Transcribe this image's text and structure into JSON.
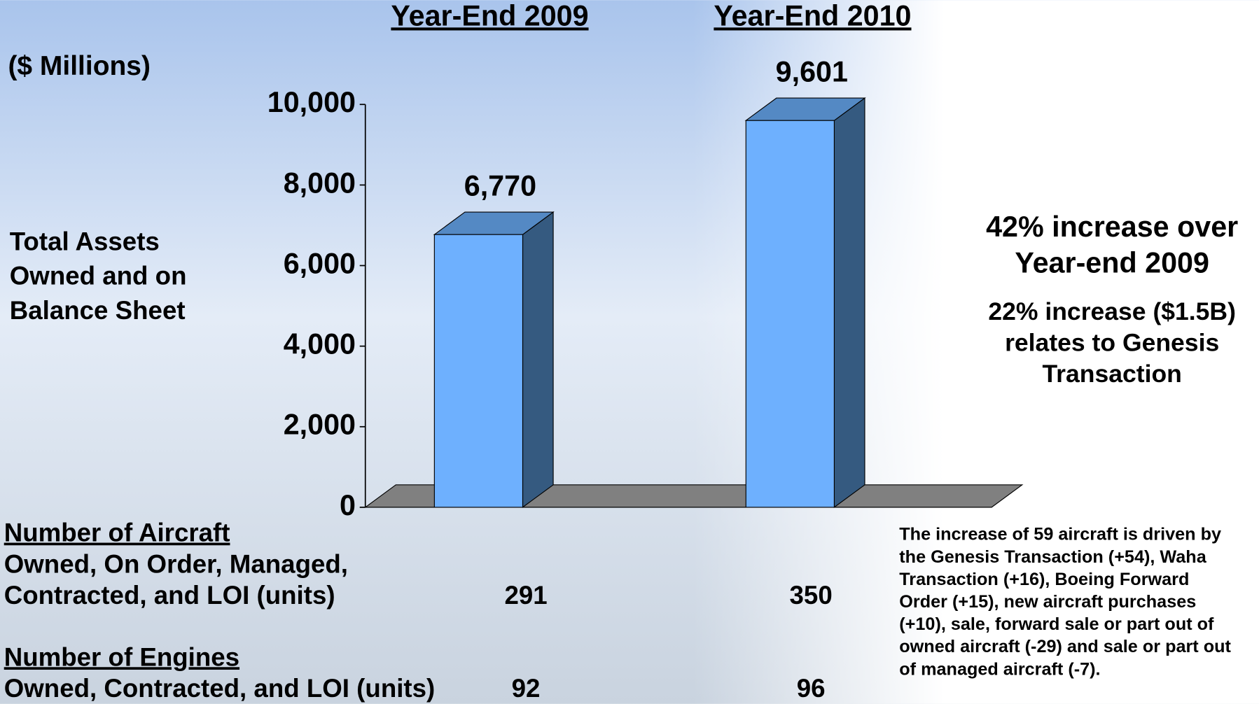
{
  "chart_data": {
    "type": "bar",
    "categories": [
      "Year-End 2009",
      "Year-End 2010"
    ],
    "values": [
      6770,
      9601
    ],
    "value_labels": [
      "6,770",
      "9,601"
    ],
    "unit_label": "($ Millions)",
    "ylabel": [
      "Total Assets",
      "Owned and on",
      "Balance Sheet"
    ],
    "color": "#6eb0fe",
    "side_color": "#355a80",
    "top_color": "#5489c4",
    "ylim": [
      0,
      10000
    ],
    "yticks": [
      0,
      {
        "value": 2000,
        "label": "2,000"
      },
      {
        "value": 4000,
        "label": "4,000"
      },
      {
        "value": 6000,
        "label": "6,000"
      },
      {
        "value": 8000,
        "label": "8,000"
      },
      {
        "value": 10000,
        "label": "10,000"
      }
    ]
  },
  "notes": {
    "headline": [
      "42% increase over",
      "Year-end 2009"
    ],
    "detail": [
      "22% increase ($1.5B)",
      "relates to Genesis",
      "Transaction"
    ],
    "footnote": [
      "The increase of 59 aircraft is driven by",
      "the Genesis Transaction (+54), Waha",
      "Transaction (+16), Boeing Forward",
      "Order (+15), new aircraft purchases",
      "(+10), sale, forward sale or part out of",
      "owned aircraft (-29) and sale or part out",
      "of managed aircraft (-7)."
    ]
  },
  "rows": [
    {
      "heading": "Number of Aircraft",
      "lines": [
        "Owned, On Order, Managed,",
        "Contracted, and LOI (units)"
      ],
      "values": [
        291,
        350
      ]
    },
    {
      "heading": "Number of Engines",
      "lines": [
        "Owned, Contracted, and LOI (units)"
      ],
      "values": [
        92,
        96
      ]
    }
  ]
}
